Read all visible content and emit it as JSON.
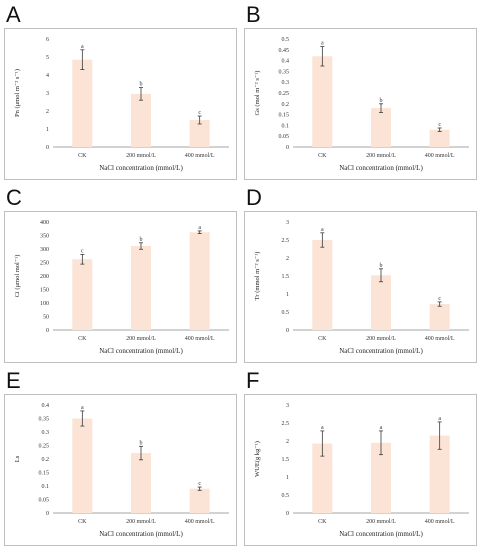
{
  "colors": {
    "bar": "#fbe3d5",
    "error": "#3a3a3a",
    "axis": "#888888"
  },
  "chart_data": [
    {
      "panel": "A",
      "type": "bar",
      "categories": [
        "CK",
        "200 mmol/L",
        "400 mmol/L"
      ],
      "values": [
        4.85,
        2.95,
        1.5
      ],
      "errors": [
        0.55,
        0.35,
        0.22
      ],
      "significance": [
        "a",
        "b",
        "c"
      ],
      "ylabel": "Pn (μmol m⁻² s⁻¹)",
      "xlabel": "NaCl concentration (mmol/L)",
      "ylim": [
        0,
        6
      ],
      "yticks": [
        0,
        1,
        2,
        3,
        4,
        5,
        6
      ]
    },
    {
      "panel": "B",
      "type": "bar",
      "categories": [
        "CK",
        "200 mmol/L",
        "400 mmol/L"
      ],
      "values": [
        0.42,
        0.18,
        0.08
      ],
      "errors": [
        0.045,
        0.02,
        0.008
      ],
      "significance": [
        "a",
        "b",
        "c"
      ],
      "ylabel": "Gs (mol m⁻² s⁻¹)",
      "xlabel": "NaCl concentration (mmol/L)",
      "ylim": [
        0,
        0.5
      ],
      "yticks": [
        0,
        0.05,
        0.1,
        0.15,
        0.2,
        0.25,
        0.3,
        0.35,
        0.4,
        0.45,
        0.5
      ]
    },
    {
      "panel": "C",
      "type": "bar",
      "categories": [
        "CK",
        "200 mmol/L",
        "400 mmol/L"
      ],
      "values": [
        262,
        311,
        362
      ],
      "errors": [
        18,
        12,
        5
      ],
      "significance": [
        "c",
        "b",
        "a"
      ],
      "ylabel": "Ci (μmol mol⁻¹)",
      "xlabel": "NaCl concentration (mmol/L)",
      "ylim": [
        0,
        400
      ],
      "yticks": [
        0,
        50,
        100,
        150,
        200,
        250,
        300,
        350,
        400
      ]
    },
    {
      "panel": "D",
      "type": "bar",
      "categories": [
        "CK",
        "200 mmol/L",
        "400 mmol/L"
      ],
      "values": [
        2.5,
        1.52,
        0.72
      ],
      "errors": [
        0.2,
        0.18,
        0.06
      ],
      "significance": [
        "a",
        "b",
        "c"
      ],
      "ylabel": "Tr (mmol m⁻² s⁻¹)",
      "xlabel": "NaCl concentration (mmol/L)",
      "ylim": [
        0,
        3
      ],
      "yticks": [
        0,
        0.5,
        1,
        1.5,
        2,
        2.5,
        3
      ]
    },
    {
      "panel": "E",
      "type": "bar",
      "categories": [
        "CK",
        "200 mmol/L",
        "400 mmol/L"
      ],
      "values": [
        0.35,
        0.222,
        0.09
      ],
      "errors": [
        0.028,
        0.025,
        0.006
      ],
      "significance": [
        "a",
        "b",
        "c"
      ],
      "ylabel": "Ls",
      "xlabel": "NaCl concentration (mmol/L)",
      "ylim": [
        0,
        0.4
      ],
      "yticks": [
        0,
        0.05,
        0.1,
        0.15,
        0.2,
        0.25,
        0.3,
        0.35,
        0.4
      ]
    },
    {
      "panel": "F",
      "type": "bar",
      "categories": [
        "CK",
        "200 mmol/L",
        "400 mmol/L"
      ],
      "values": [
        1.93,
        1.95,
        2.15
      ],
      "errors": [
        0.35,
        0.33,
        0.38
      ],
      "significance": [
        "a",
        "a",
        "a"
      ],
      "ylabel": "WUE(g kg⁻¹)",
      "xlabel": "NaCl concentration (mmol/L)",
      "ylim": [
        0,
        3
      ],
      "yticks": [
        0,
        0.5,
        1,
        1.5,
        2,
        2.5,
        3
      ]
    }
  ]
}
